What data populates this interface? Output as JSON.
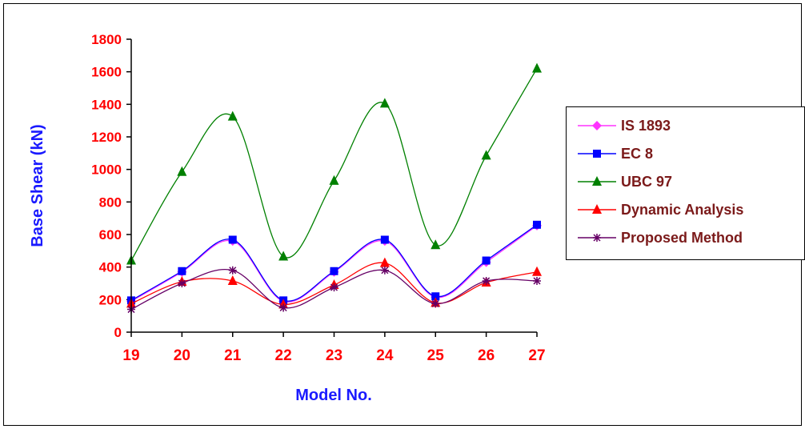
{
  "chart_data": {
    "type": "line",
    "xlabel": "Model No.",
    "ylabel": "Base Shear (kN)",
    "ylim": [
      0,
      1800
    ],
    "yticks": [
      0,
      200,
      400,
      600,
      800,
      1000,
      1200,
      1400,
      1600,
      1800
    ],
    "categories": [
      "19",
      "20",
      "21",
      "22",
      "23",
      "24",
      "25",
      "26",
      "27"
    ],
    "grid": false,
    "legend_position": "right",
    "series": [
      {
        "name": "IS 1893",
        "color": "#ff33ff",
        "marker": "diamond",
        "values": [
          190,
          370,
          560,
          190,
          370,
          560,
          215,
          430,
          655
        ]
      },
      {
        "name": "EC 8",
        "color": "#0000ff",
        "marker": "square",
        "values": [
          195,
          375,
          568,
          195,
          375,
          568,
          220,
          440,
          660
        ]
      },
      {
        "name": "UBC 97",
        "color": "#008000",
        "marker": "triangle",
        "values": [
          440,
          985,
          1325,
          465,
          930,
          1405,
          535,
          1085,
          1620
        ]
      },
      {
        "name": "Dynamic Analysis",
        "color": "#ff0000",
        "marker": "triangle",
        "values": [
          175,
          310,
          315,
          170,
          290,
          425,
          180,
          305,
          370
        ]
      },
      {
        "name": "Proposed Method",
        "color": "#660066",
        "marker": "star",
        "values": [
          140,
          300,
          380,
          150,
          275,
          380,
          175,
          315,
          315
        ]
      }
    ]
  }
}
